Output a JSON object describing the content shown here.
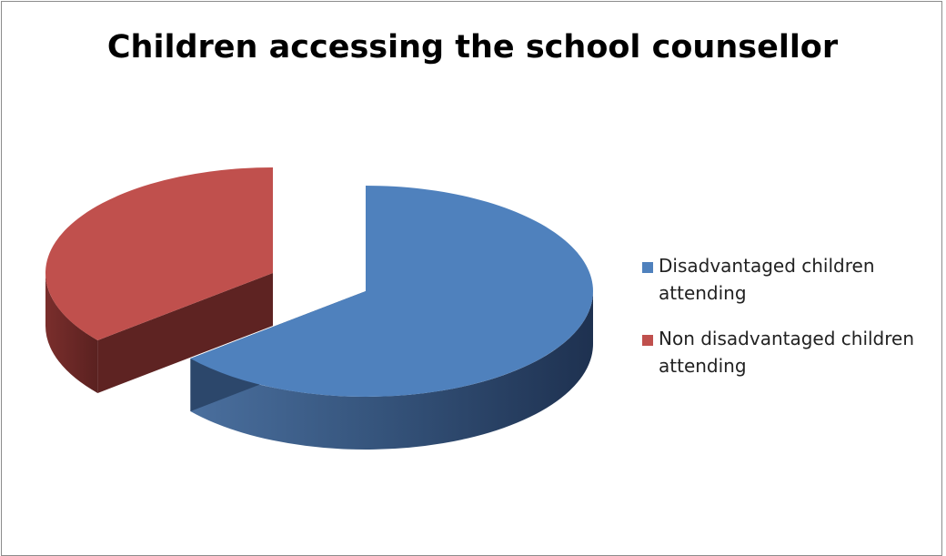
{
  "chart_data": {
    "type": "pie",
    "title": "Children accessing the school counsellor",
    "style": "3d-exploded",
    "slices": [
      {
        "label": "Disadvantaged children attending",
        "value": 64,
        "color": "#4f81bd"
      },
      {
        "label": "Non disadvantaged children attending",
        "value": 36,
        "color": "#c0504d"
      }
    ],
    "legend": {
      "placement": "right",
      "entries": [
        {
          "line1": "Disadvantaged children",
          "line2": "attending",
          "color": "#4f81bd"
        },
        {
          "line1": "Non disadvantaged children",
          "line2": "attending",
          "color": "#c0504d"
        }
      ]
    }
  }
}
